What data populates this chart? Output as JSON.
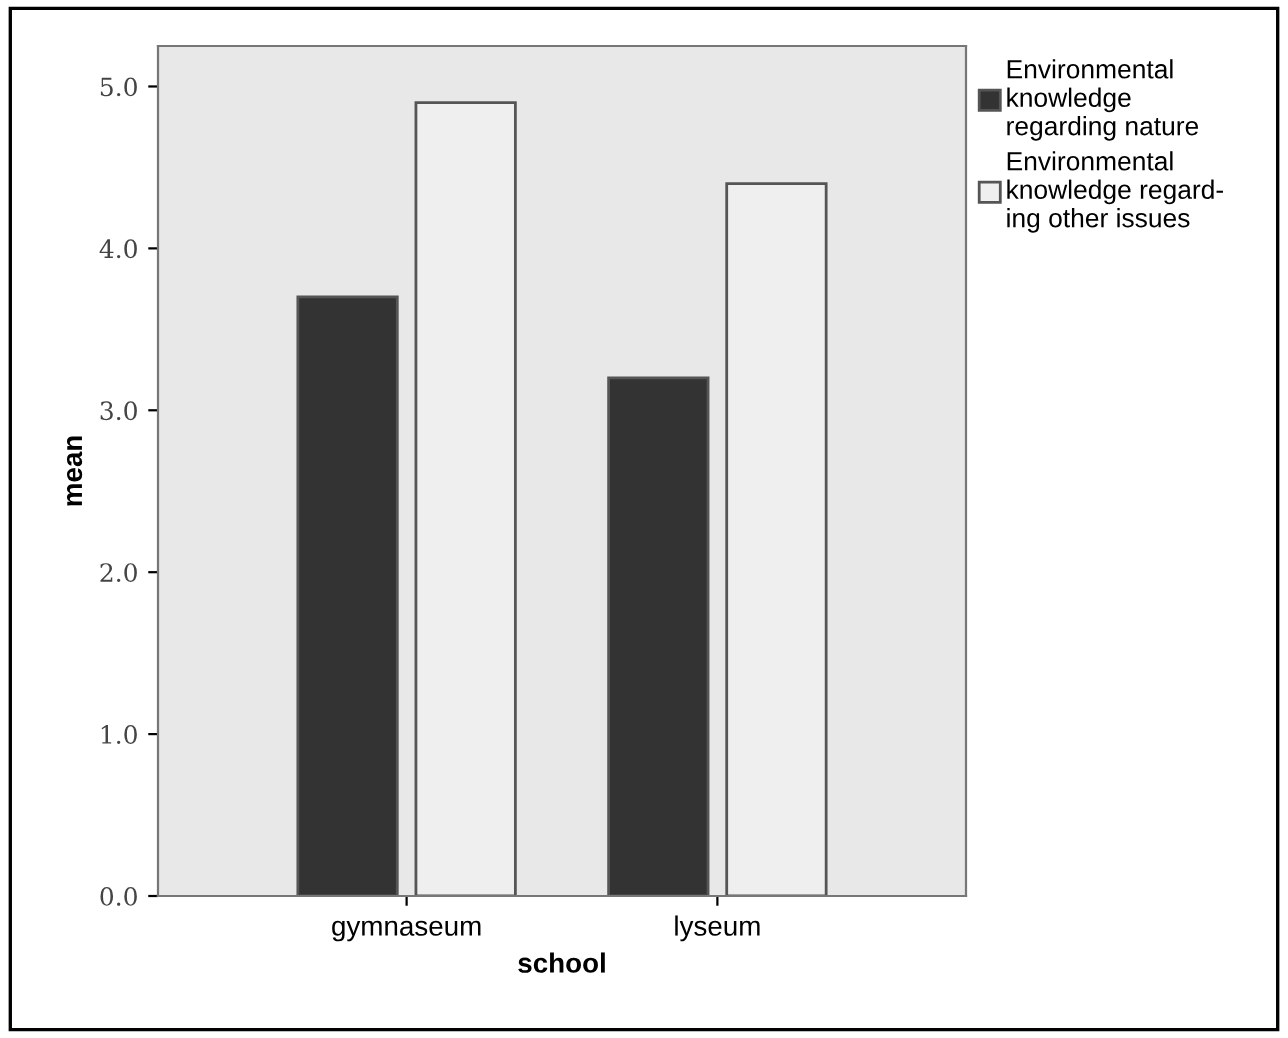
{
  "chart_data": {
    "type": "bar",
    "xlabel": "school",
    "ylabel": "mean",
    "categories": [
      "gymnaseum",
      "lyseum"
    ],
    "series": [
      {
        "name": "Environmental\nknowledge\nregarding nature",
        "color": "#333333",
        "values": [
          3.7,
          3.2
        ]
      },
      {
        "name": "Environmental\nknowledge regard-\ning other issues",
        "color": "#efefef",
        "values": [
          4.9,
          4.4
        ]
      }
    ],
    "ylim": [
      0,
      5.25
    ],
    "yticks": [
      {
        "value": 0,
        "label": "0.0"
      },
      {
        "value": 1,
        "label": "1.0"
      },
      {
        "value": 2,
        "label": "2.0"
      },
      {
        "value": 3,
        "label": "3.0"
      },
      {
        "value": 4,
        "label": "4.0"
      },
      {
        "value": 5,
        "label": "5.0"
      }
    ],
    "grid": false,
    "legend": "top right"
  }
}
